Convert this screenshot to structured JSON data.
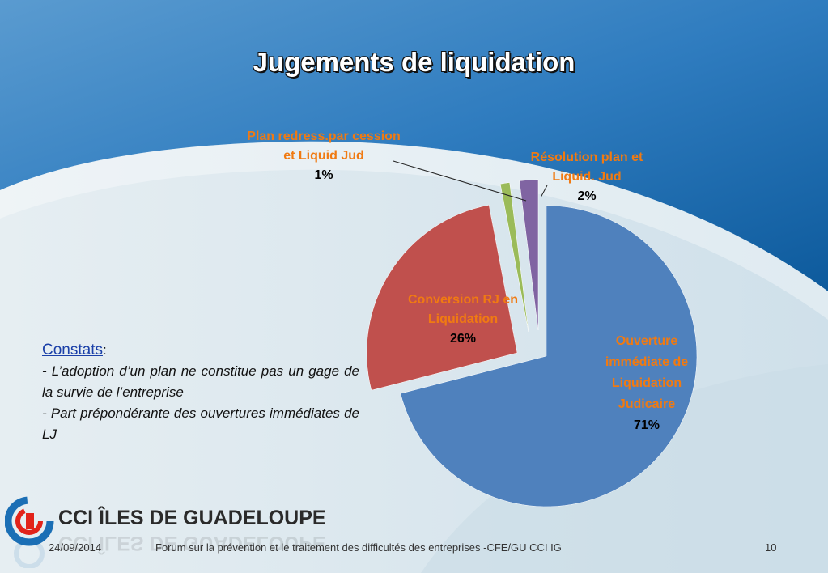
{
  "slide": {
    "title": "Jugements de liquidation",
    "date": "24/09/2014",
    "footer": "Forum sur la prévention et le traitement des difficultés des entreprises -CFE/GU CCI IG",
    "page_number": "10",
    "logo_text": "CCI ÎLES DE GUADELOUPE"
  },
  "constats": {
    "heading": "Constats",
    "colon": ":",
    "line1": " - L’adoption d’un plan  ne constitue pas un gage de la survie de l’entreprise",
    "line2": "- Part prépondérante des ouvertures immédiates de LJ"
  },
  "chart_data": {
    "type": "pie",
    "title": "Jugements de liquidation",
    "exploded": true,
    "slices": [
      {
        "label": "Ouverture immédiate de Liquidation Judicaire",
        "value": 71,
        "pct_label": "71%",
        "color": "#4f81bd"
      },
      {
        "label": "Conversion RJ en Liquidation",
        "value": 26,
        "pct_label": "26%",
        "color": "#c0504d"
      },
      {
        "label": "Plan redress.par cession et Liquid Jud",
        "value": 1,
        "pct_label": "1%",
        "color": "#9bbb59"
      },
      {
        "label": "Résolution plan et Liquid. Jud",
        "value": 2,
        "pct_label": "2%",
        "color": "#8064a2"
      }
    ],
    "label_color": "#f07a12"
  }
}
